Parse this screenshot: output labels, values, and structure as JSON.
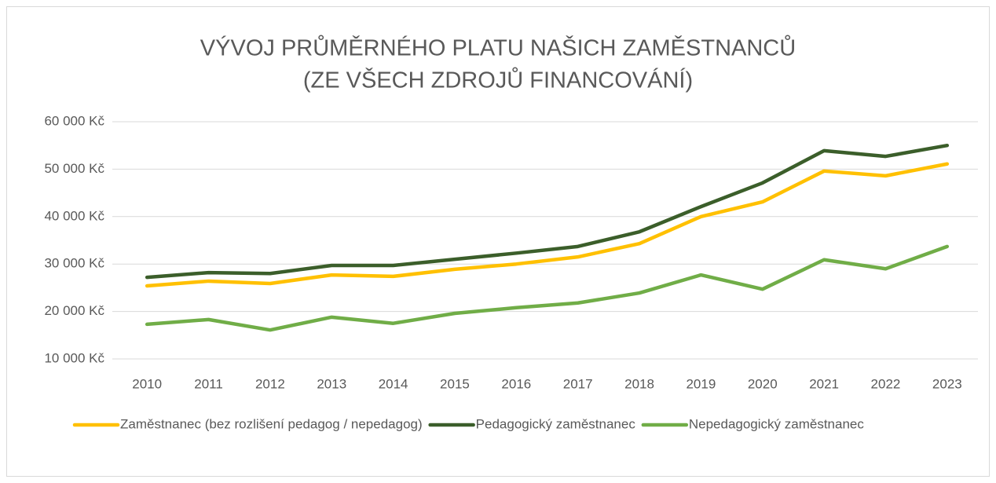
{
  "chart_data": {
    "type": "line",
    "title": [
      "VÝVOJ PRŮMĚRNÉHO PLATU NAŠICH ZAMĚSTNANCŮ",
      "(ZE VŠECH ZDROJŮ FINANCOVÁNÍ)"
    ],
    "categories": [
      "2010",
      "2011",
      "2012",
      "2013",
      "2014",
      "2015",
      "2016",
      "2017",
      "2018",
      "2019",
      "2020",
      "2021",
      "2022",
      "2023"
    ],
    "series": [
      {
        "name": "Zaměstnanec (bez rozlišení pedagog / nepedagog)",
        "color": "#ffc000",
        "values": [
          25400,
          26400,
          25900,
          27700,
          27400,
          28900,
          30000,
          31500,
          34300,
          40000,
          43100,
          49600,
          48600,
          51100
        ]
      },
      {
        "name": "Pedagogický zaměstnanec",
        "color": "#3b5e2a",
        "values": [
          27200,
          28200,
          28000,
          29700,
          29700,
          31000,
          32300,
          33700,
          36800,
          42100,
          47100,
          53900,
          52700,
          55000
        ]
      },
      {
        "name": "Nepedagogický zaměstnanec",
        "color": "#70ad47",
        "values": [
          17300,
          18300,
          16100,
          18800,
          17500,
          19600,
          20800,
          21800,
          23900,
          27700,
          24700,
          30900,
          29000,
          33700
        ]
      }
    ],
    "ylim": [
      10000,
      60000
    ],
    "yticks": [
      {
        "value": 10000,
        "label": "10 000 Kč"
      },
      {
        "value": 20000,
        "label": "20 000 Kč"
      },
      {
        "value": 30000,
        "label": "30 000 Kč"
      },
      {
        "value": 40000,
        "label": "40 000 Kč"
      },
      {
        "value": 50000,
        "label": "50 000 Kč"
      },
      {
        "value": 60000,
        "label": "60 000 Kč"
      }
    ],
    "grid": true,
    "legend": "bottom"
  }
}
